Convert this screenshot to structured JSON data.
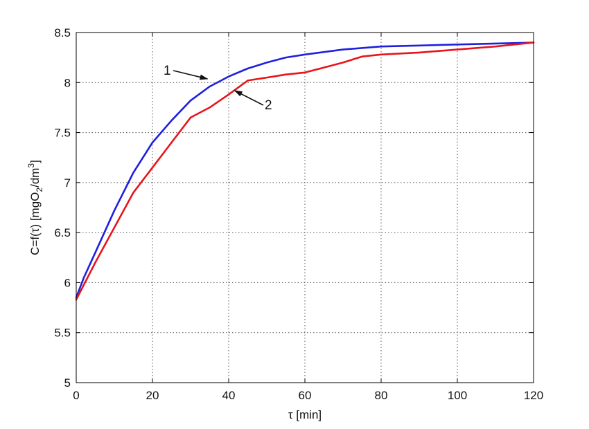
{
  "chart_data": {
    "type": "line",
    "title": "",
    "xlabel": "τ [min]",
    "ylabel": {
      "prefix": "C=f(τ) [mgO",
      "sub": "2",
      "mid": "/dm",
      "sup": "3",
      "suffix": "]"
    },
    "xlim": [
      0,
      120
    ],
    "ylim": [
      5,
      8.5
    ],
    "xticks": [
      0,
      20,
      40,
      60,
      80,
      100,
      120
    ],
    "xtick_labels": [
      "0",
      "20",
      "40",
      "60",
      "80",
      "100",
      "120"
    ],
    "yticks": [
      5,
      5.5,
      6,
      6.5,
      7,
      7.5,
      8,
      8.5
    ],
    "ytick_labels": [
      "5",
      "5.5",
      "6",
      "6.5",
      "7",
      "7.5",
      "8",
      "8.5"
    ],
    "grid": true,
    "series": [
      {
        "color": "#1f1fe0",
        "x": [
          0,
          2,
          5,
          10,
          15,
          20,
          25,
          30,
          35,
          40,
          45,
          50,
          55,
          60,
          70,
          80,
          90,
          100,
          110,
          120
        ],
        "y": [
          5.85,
          6.05,
          6.3,
          6.72,
          7.1,
          7.4,
          7.62,
          7.82,
          7.96,
          8.06,
          8.14,
          8.2,
          8.25,
          8.28,
          8.33,
          8.36,
          8.37,
          8.38,
          8.39,
          8.4
        ]
      },
      {
        "color": "#e8141a",
        "x": [
          0,
          5,
          10,
          15,
          20,
          25,
          30,
          35,
          40,
          45,
          50,
          55,
          60,
          65,
          70,
          75,
          80,
          90,
          100,
          110,
          120
        ],
        "y": [
          5.83,
          6.2,
          6.55,
          6.9,
          7.15,
          7.4,
          7.65,
          7.75,
          7.88,
          8.02,
          8.05,
          8.08,
          8.1,
          8.15,
          8.2,
          8.26,
          8.28,
          8.3,
          8.33,
          8.36,
          8.4
        ]
      }
    ],
    "annotations": [
      {
        "text": "1",
        "series": 0
      },
      {
        "text": "2",
        "series": 1
      }
    ]
  }
}
